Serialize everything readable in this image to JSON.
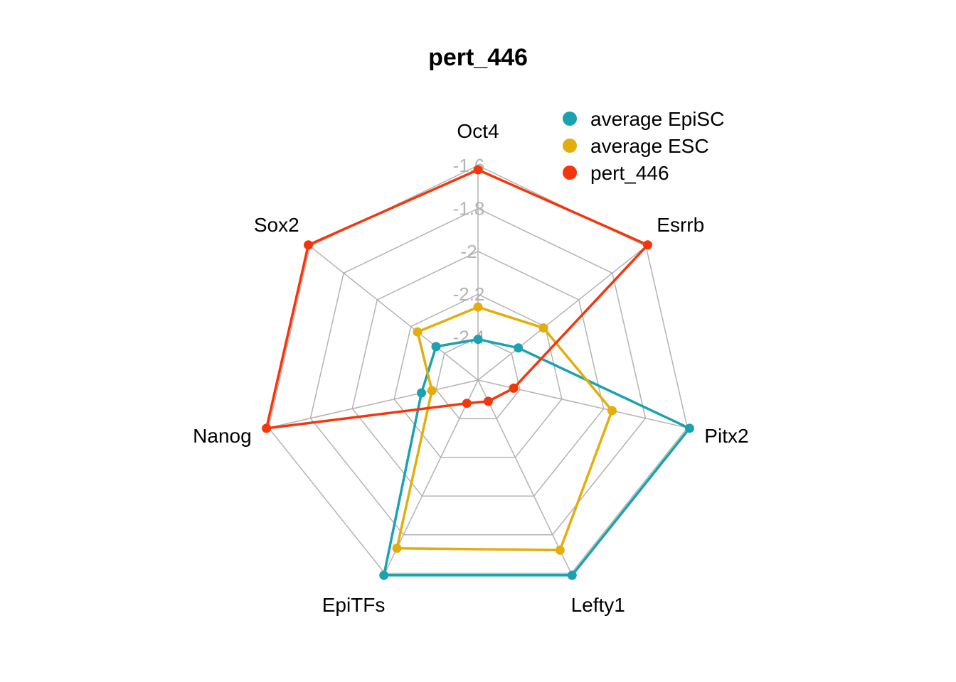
{
  "chart_data": {
    "type": "radar",
    "title": "pert_446",
    "axes": [
      "Oct4",
      "Esrrb",
      "Pitx2",
      "Lefty1",
      "EpiTFs",
      "Nanog",
      "Sox2"
    ],
    "rlim": [
      -2.6,
      -1.6
    ],
    "ticks": [
      -1.6,
      -1.8,
      -2.0,
      -2.2,
      -2.4
    ],
    "tick_labels": [
      "-1.6",
      "-1.8",
      "-2",
      "-2.2",
      "-2.4"
    ],
    "grid": true,
    "legend_position": "top-right",
    "series": [
      {
        "name": "average EpiSC",
        "color": "#1AA2B0",
        "values": [
          -2.41,
          -2.36,
          -1.59,
          -1.59,
          -1.59,
          -2.33,
          -2.35
        ]
      },
      {
        "name": "average ESC",
        "color": "#E3AE0B",
        "values": [
          -2.26,
          -2.21,
          -1.96,
          -1.72,
          -1.73,
          -2.38,
          -2.24
        ]
      },
      {
        "name": "pert_446",
        "color": "#F5360B",
        "values": [
          -1.62,
          -1.59,
          -2.43,
          -2.49,
          -2.48,
          -1.59,
          -1.59
        ]
      }
    ]
  }
}
